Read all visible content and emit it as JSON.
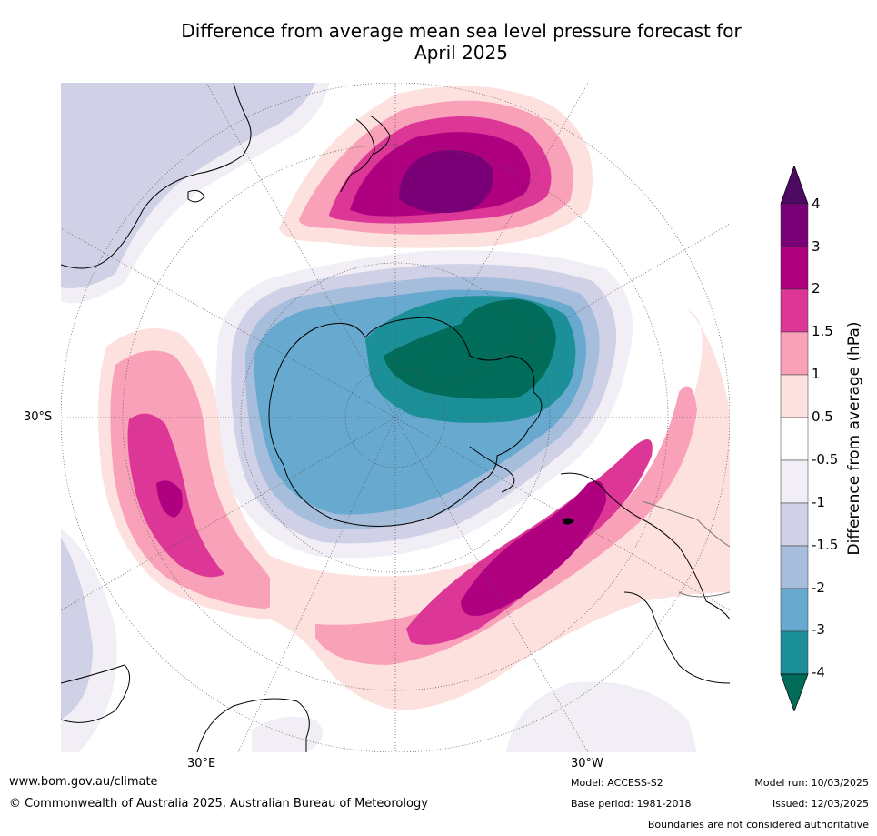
{
  "title_line1": "Difference from average mean sea level pressure forecast for",
  "title_line2": "April 2025",
  "labels": {
    "lat": "30°S",
    "lon_e": "30°E",
    "lon_w": "30°W"
  },
  "colorbar": {
    "title": "Difference from average (hPa)",
    "ticks": [
      "4",
      "3",
      "2",
      "1.5",
      "1",
      "0.5",
      "-0.5",
      "-1",
      "-1.5",
      "-2",
      "-3",
      "-4"
    ],
    "colors": [
      "#4d0a63",
      "#7a0077",
      "#ae007f",
      "#dc3797",
      "#f9a1b8",
      "#fde1df",
      "#ffffff",
      "#f2eef5",
      "#d0d1e6",
      "#a6bddb",
      "#67a9cf",
      "#1c9099",
      "#016c59"
    ]
  },
  "footer": {
    "url": "www.bom.gov.au/climate",
    "copyright": "© Commonwealth of Australia 2025, Australian Bureau of Meteorology",
    "model": "Model: ACCESS-S2",
    "base": "Base period: 1981-2018",
    "run": "Model run: 10/03/2025",
    "issued": "Issued: 12/03/2025",
    "disclaimer": "Boundaries are not considered authoritative"
  }
}
